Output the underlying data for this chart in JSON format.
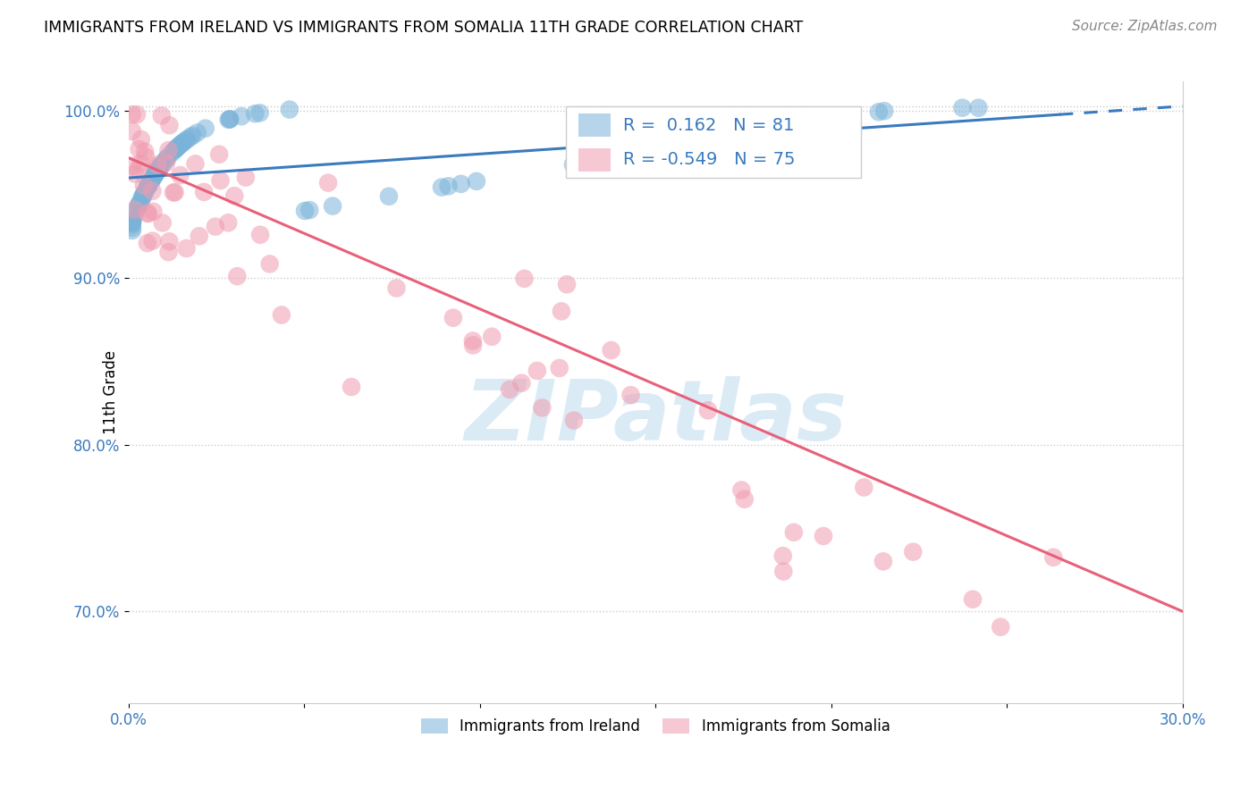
{
  "title": "IMMIGRANTS FROM IRELAND VS IMMIGRANTS FROM SOMALIA 11TH GRADE CORRELATION CHART",
  "source": "Source: ZipAtlas.com",
  "ylabel": "11th Grade",
  "xlim": [
    0.0,
    0.3
  ],
  "ylim": [
    0.645,
    1.018
  ],
  "yticks": [
    0.7,
    0.8,
    0.9,
    1.0
  ],
  "ytick_labels": [
    "70.0%",
    "80.0%",
    "90.0%",
    "100.0%"
  ],
  "ireland_color": "#7ab3d9",
  "somalia_color": "#f09cb0",
  "ireland_line_color": "#3a7abf",
  "somalia_line_color": "#e8607a",
  "ireland_R": 0.162,
  "ireland_N": 81,
  "somalia_R": -0.549,
  "somalia_N": 75,
  "watermark": "ZIPatlas",
  "watermark_color": "#b8d8ee",
  "legend_label_ireland": "Immigrants from Ireland",
  "legend_label_somalia": "Immigrants from Somalia",
  "ireland_trend_y0": 0.96,
  "ireland_trend_y1": 1.003,
  "somalia_trend_y0": 0.972,
  "somalia_trend_y1": 0.7
}
